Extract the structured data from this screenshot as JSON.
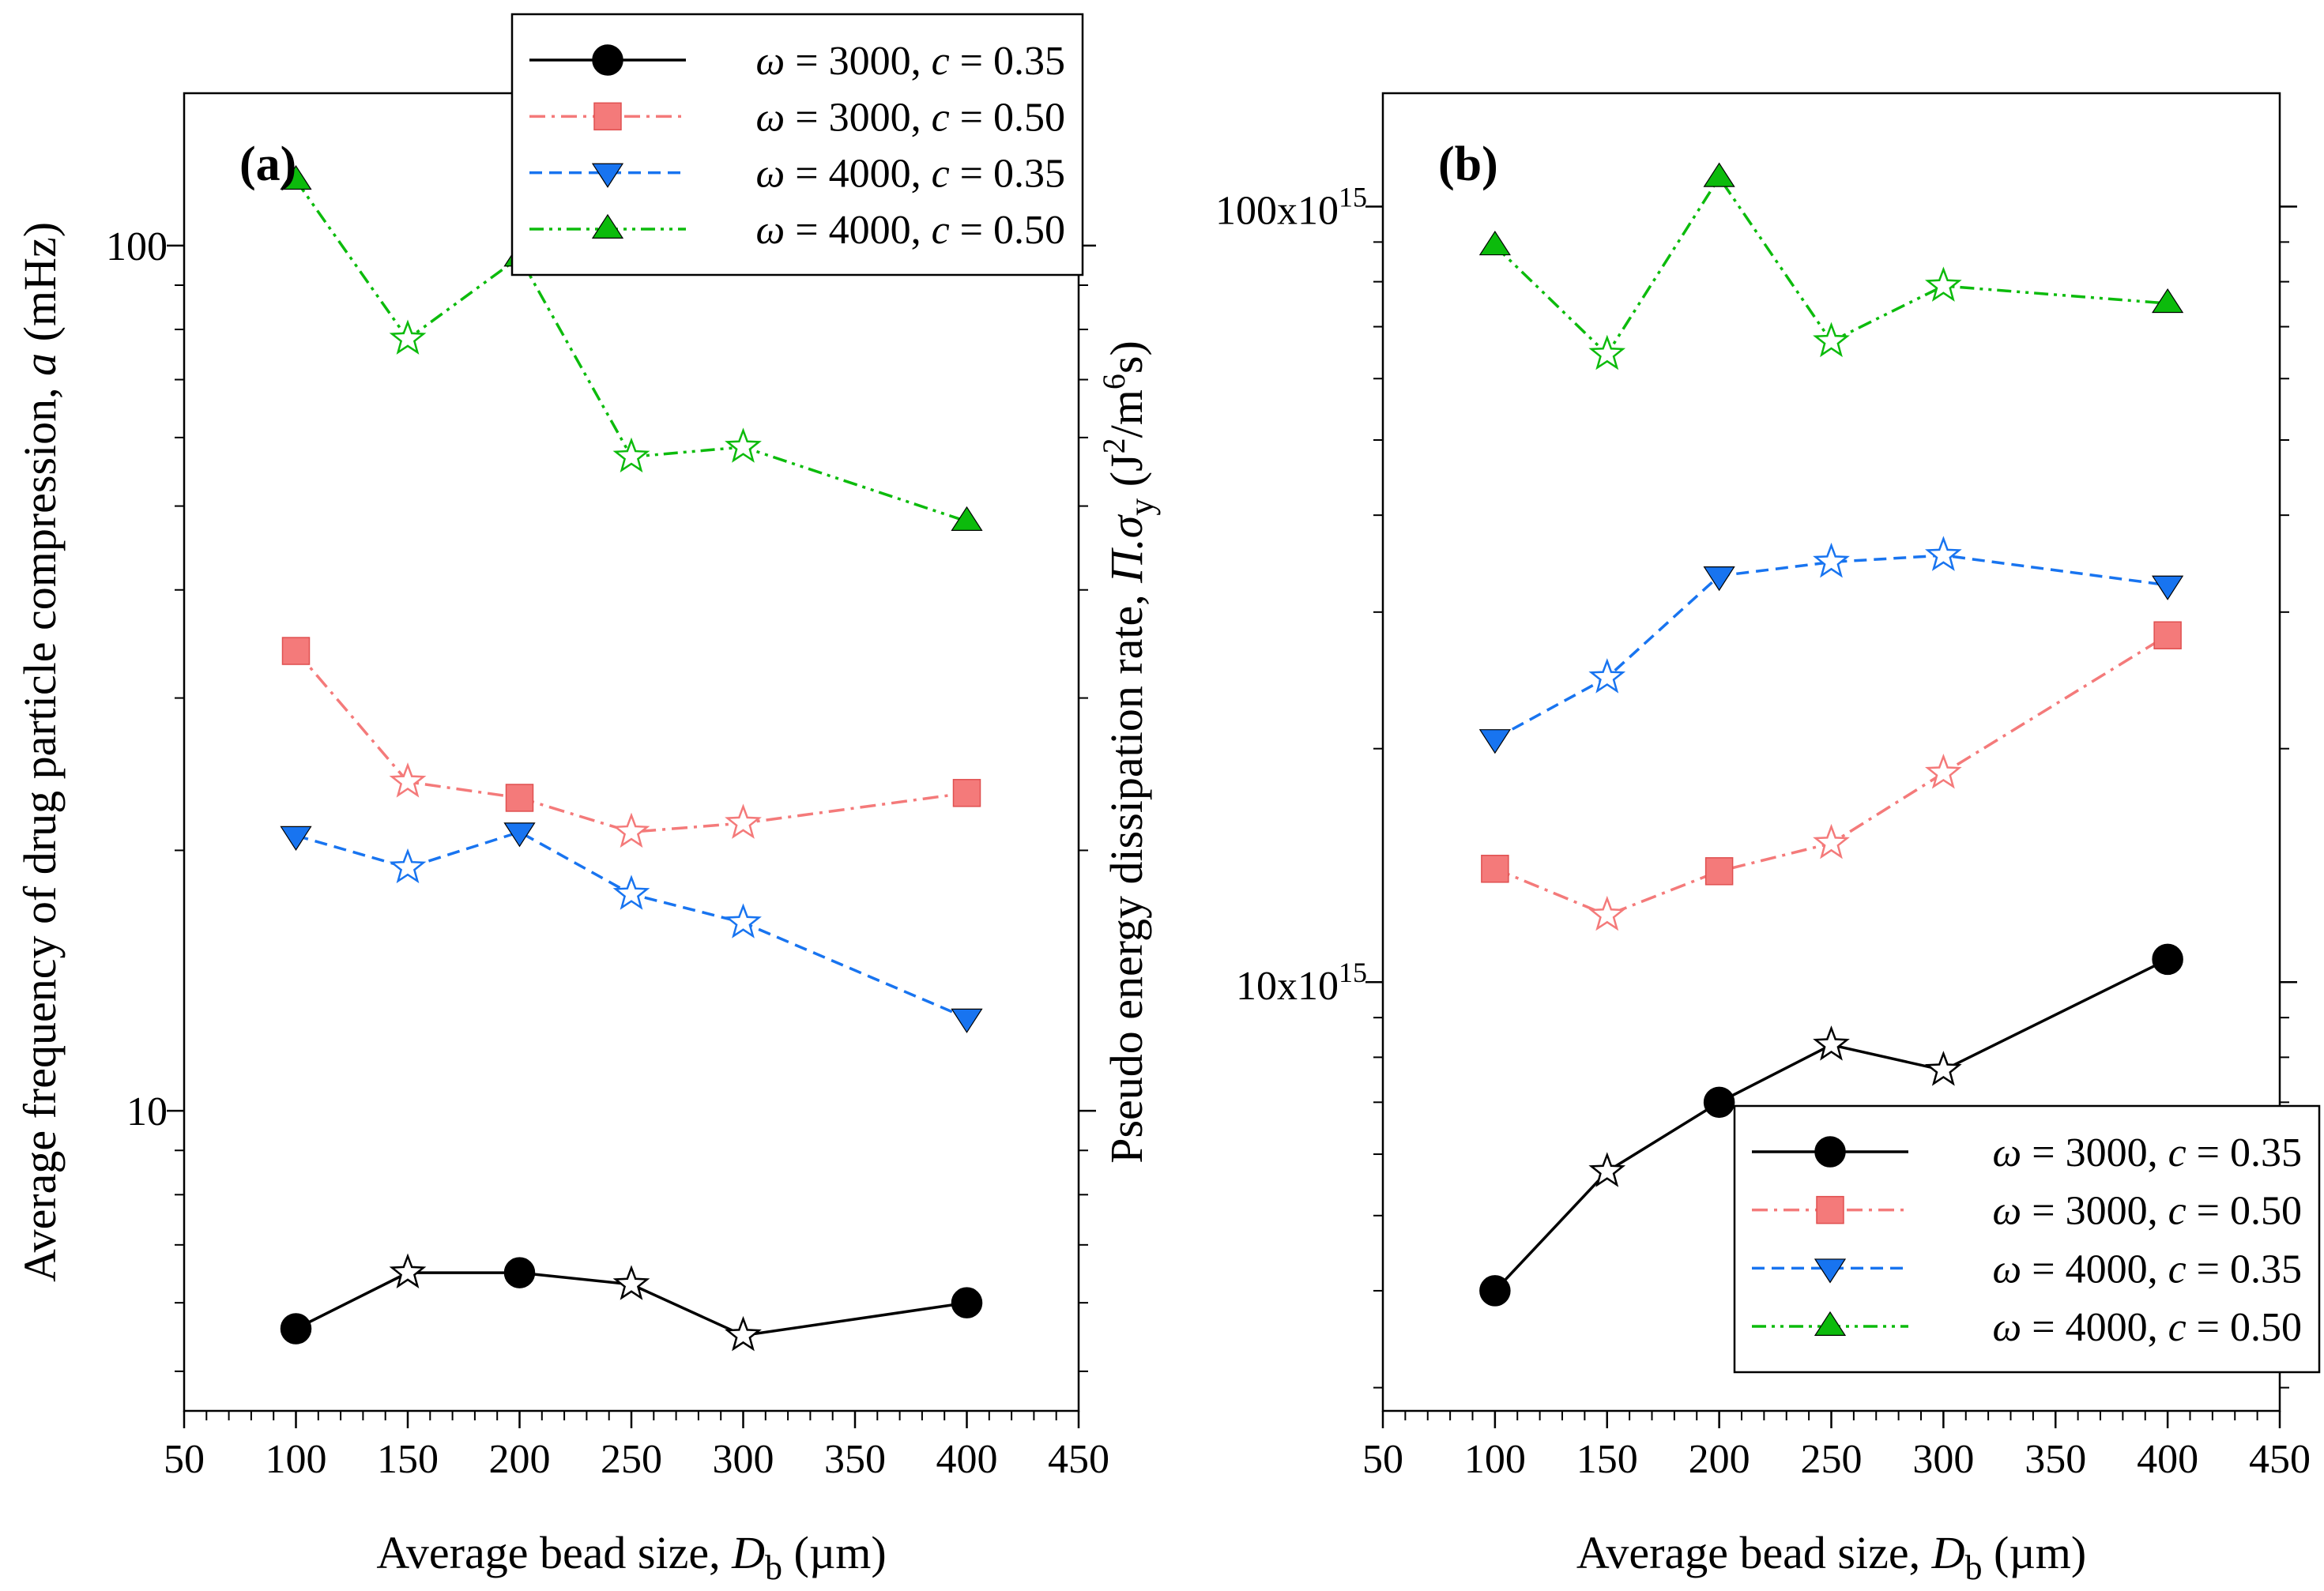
{
  "chart_data": [
    {
      "type": "line",
      "panel_label": "(a)",
      "xlabel": {
        "main": "Average bead size, ",
        "var": "D",
        "sub": "b",
        "unit": " (µm)"
      },
      "ylabel": {
        "main": "Average frequency of drug particle compression, ",
        "var": "a",
        "unit": " (mHz)"
      },
      "y_scale": "log",
      "xlim": [
        50,
        450
      ],
      "ylim": [
        4.5,
        150
      ],
      "x_ticks": [
        50,
        100,
        150,
        200,
        250,
        300,
        350,
        400,
        450
      ],
      "x_tick_labels": [
        "50",
        "100",
        "150",
        "200",
        "250",
        "300",
        "350",
        "400",
        "450"
      ],
      "y_ticks": [
        10,
        100
      ],
      "y_tick_labels": [
        "10",
        "100"
      ],
      "legend_position": "top-center",
      "x": [
        100,
        150,
        200,
        250,
        300,
        400
      ],
      "series": [
        {
          "name": "ω = 3000, c = 0.35",
          "omega": "3000",
          "c": "0.35",
          "color": "#000000",
          "dash": "",
          "marker": "circle",
          "values": [
            5.6,
            6.5,
            6.5,
            6.3,
            5.5,
            6.0
          ],
          "star_points": [
            false,
            true,
            false,
            true,
            true,
            false
          ]
        },
        {
          "name": "ω = 3000, c = 0.50",
          "omega": "3000",
          "c": "0.50",
          "color": "#f47a7a",
          "dash": "20 8 4 8",
          "marker": "square",
          "values": [
            34.0,
            24.0,
            23.0,
            21.0,
            21.5,
            23.3
          ],
          "star_points": [
            false,
            true,
            false,
            true,
            true,
            false
          ]
        },
        {
          "name": "ω = 4000, c = 0.35",
          "omega": "4000",
          "c": "0.35",
          "color": "#1874f0",
          "dash": "16 9",
          "marker": "triangle-down",
          "values": [
            20.8,
            19.1,
            21.0,
            17.8,
            16.5,
            12.8
          ],
          "star_points": [
            false,
            true,
            false,
            true,
            true,
            false
          ]
        },
        {
          "name": "ω = 4000, c = 0.50",
          "omega": "4000",
          "c": "0.50",
          "color": "#0cbb0c",
          "dash": "18 7 4 7 4 7",
          "marker": "triangle-up",
          "values": [
            119.0,
            78.0,
            97.0,
            57.0,
            58.5,
            48.0
          ],
          "star_points": [
            false,
            true,
            false,
            true,
            true,
            false
          ]
        }
      ]
    },
    {
      "type": "line",
      "panel_label": "(b)",
      "xlabel": {
        "main": "Average bead size, ",
        "var": "D",
        "sub": "b",
        "unit": " (µm)"
      },
      "ylabel": {
        "main": "Pseudo energy dissipation rate, ",
        "var": "Π.σ",
        "sub": "y",
        "unit_open": " (J",
        "sup1": "2",
        "unit_mid": "/m",
        "sup2": "6",
        "unit_close": "s)"
      },
      "y_scale": "log",
      "y_unit_note": "values in units of 10^15",
      "xlim": [
        50,
        450
      ],
      "ylim": [
        2.8,
        140
      ],
      "x_ticks": [
        50,
        100,
        150,
        200,
        250,
        300,
        350,
        400,
        450
      ],
      "x_tick_labels": [
        "50",
        "100",
        "150",
        "200",
        "250",
        "300",
        "350",
        "400",
        "450"
      ],
      "y_ticks": [
        10,
        100
      ],
      "y_tick_labels": [
        {
          "mant": "10x10",
          "exp": "15"
        },
        {
          "mant": "100x10",
          "exp": "15"
        }
      ],
      "legend_position": "bottom-right",
      "x": [
        100,
        150,
        200,
        250,
        300,
        400
      ],
      "series": [
        {
          "name": "ω = 3000, c = 0.35",
          "omega": "3000",
          "c": "0.35",
          "color": "#000000",
          "dash": "",
          "marker": "circle",
          "values": [
            4.0,
            5.7,
            7.0,
            8.3,
            7.7,
            10.7
          ],
          "star_points": [
            false,
            true,
            false,
            true,
            true,
            false
          ]
        },
        {
          "name": "ω = 3000, c = 0.50",
          "omega": "3000",
          "c": "0.50",
          "color": "#f47a7a",
          "dash": "20 8 4 8",
          "marker": "square",
          "values": [
            14.0,
            12.2,
            13.9,
            15.1,
            18.6,
            28.0
          ],
          "star_points": [
            false,
            true,
            false,
            true,
            true,
            false
          ]
        },
        {
          "name": "ω = 4000, c = 0.35",
          "omega": "4000",
          "c": "0.35",
          "color": "#1874f0",
          "dash": "16 9",
          "marker": "triangle-down",
          "values": [
            20.6,
            24.7,
            33.4,
            34.8,
            35.5,
            32.5
          ],
          "star_points": [
            false,
            true,
            false,
            true,
            true,
            false
          ]
        },
        {
          "name": "ω = 4000, c = 0.50",
          "omega": "4000",
          "c": "0.50",
          "color": "#0cbb0c",
          "dash": "18 7 4 7 4 7",
          "marker": "triangle-up",
          "values": [
            89.0,
            64.5,
            109.0,
            67.0,
            79.0,
            75.0
          ],
          "star_points": [
            false,
            true,
            false,
            true,
            true,
            false
          ]
        }
      ]
    }
  ]
}
